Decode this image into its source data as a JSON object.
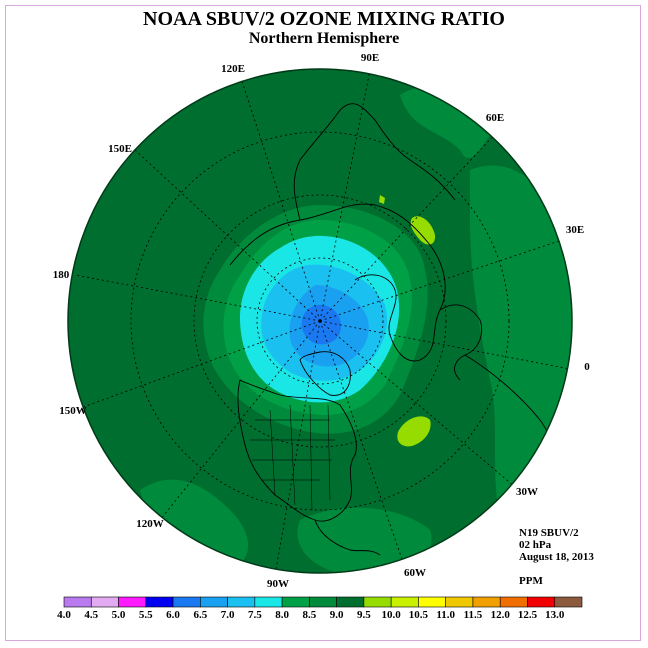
{
  "title": "NOAA SBUV/2 OZONE MIXING RATIO",
  "subtitle": "Northern Hemisphere",
  "longitude_labels": [
    {
      "id": "lon-90e",
      "text": "90E"
    },
    {
      "id": "lon-60e",
      "text": "60E"
    },
    {
      "id": "lon-30e",
      "text": "30E"
    },
    {
      "id": "lon-0",
      "text": "0"
    },
    {
      "id": "lon-30w",
      "text": "30W"
    },
    {
      "id": "lon-60w",
      "text": "60W"
    },
    {
      "id": "lon-90w",
      "text": "90W"
    },
    {
      "id": "lon-120w",
      "text": "120W"
    },
    {
      "id": "lon-150w",
      "text": "150W"
    },
    {
      "id": "lon-180",
      "text": "180"
    },
    {
      "id": "lon-150e",
      "text": "150E"
    },
    {
      "id": "lon-120e",
      "text": "120E"
    }
  ],
  "info": {
    "satellite": "N19 SBUV/2",
    "level": "02 hPa",
    "date": "August 18, 2013",
    "units": "PPM"
  },
  "colorbar": {
    "colors": [
      "#b87aee",
      "#e2aaf0",
      "#ff1aff",
      "#0000f0",
      "#1a78f0",
      "#1aa0f0",
      "#1ac0f0",
      "#1ae6e6",
      "#00a046",
      "#008a3c",
      "#006e2e",
      "#96dc00",
      "#c8f000",
      "#ffff00",
      "#f0c800",
      "#f0a000",
      "#f06e00",
      "#f00000",
      "#8c5a3c"
    ],
    "tick_labels": [
      "4.0",
      "4.5",
      "5.0",
      "5.5",
      "6.0",
      "6.5",
      "7.0",
      "7.5",
      "8.0",
      "8.5",
      "9.0",
      "9.5",
      "10.0",
      "10.5",
      "11.0",
      "11.5",
      "12.0",
      "12.5",
      "13.0"
    ]
  },
  "map_colors": {
    "base": "#006e2e",
    "mid": "#008a3c",
    "light": "#00a046",
    "cyan": "#1ae6e6",
    "sky": "#1ac0f0",
    "blue": "#1aa0f0",
    "deep": "#1a78f0",
    "lime": "#96dc00"
  }
}
